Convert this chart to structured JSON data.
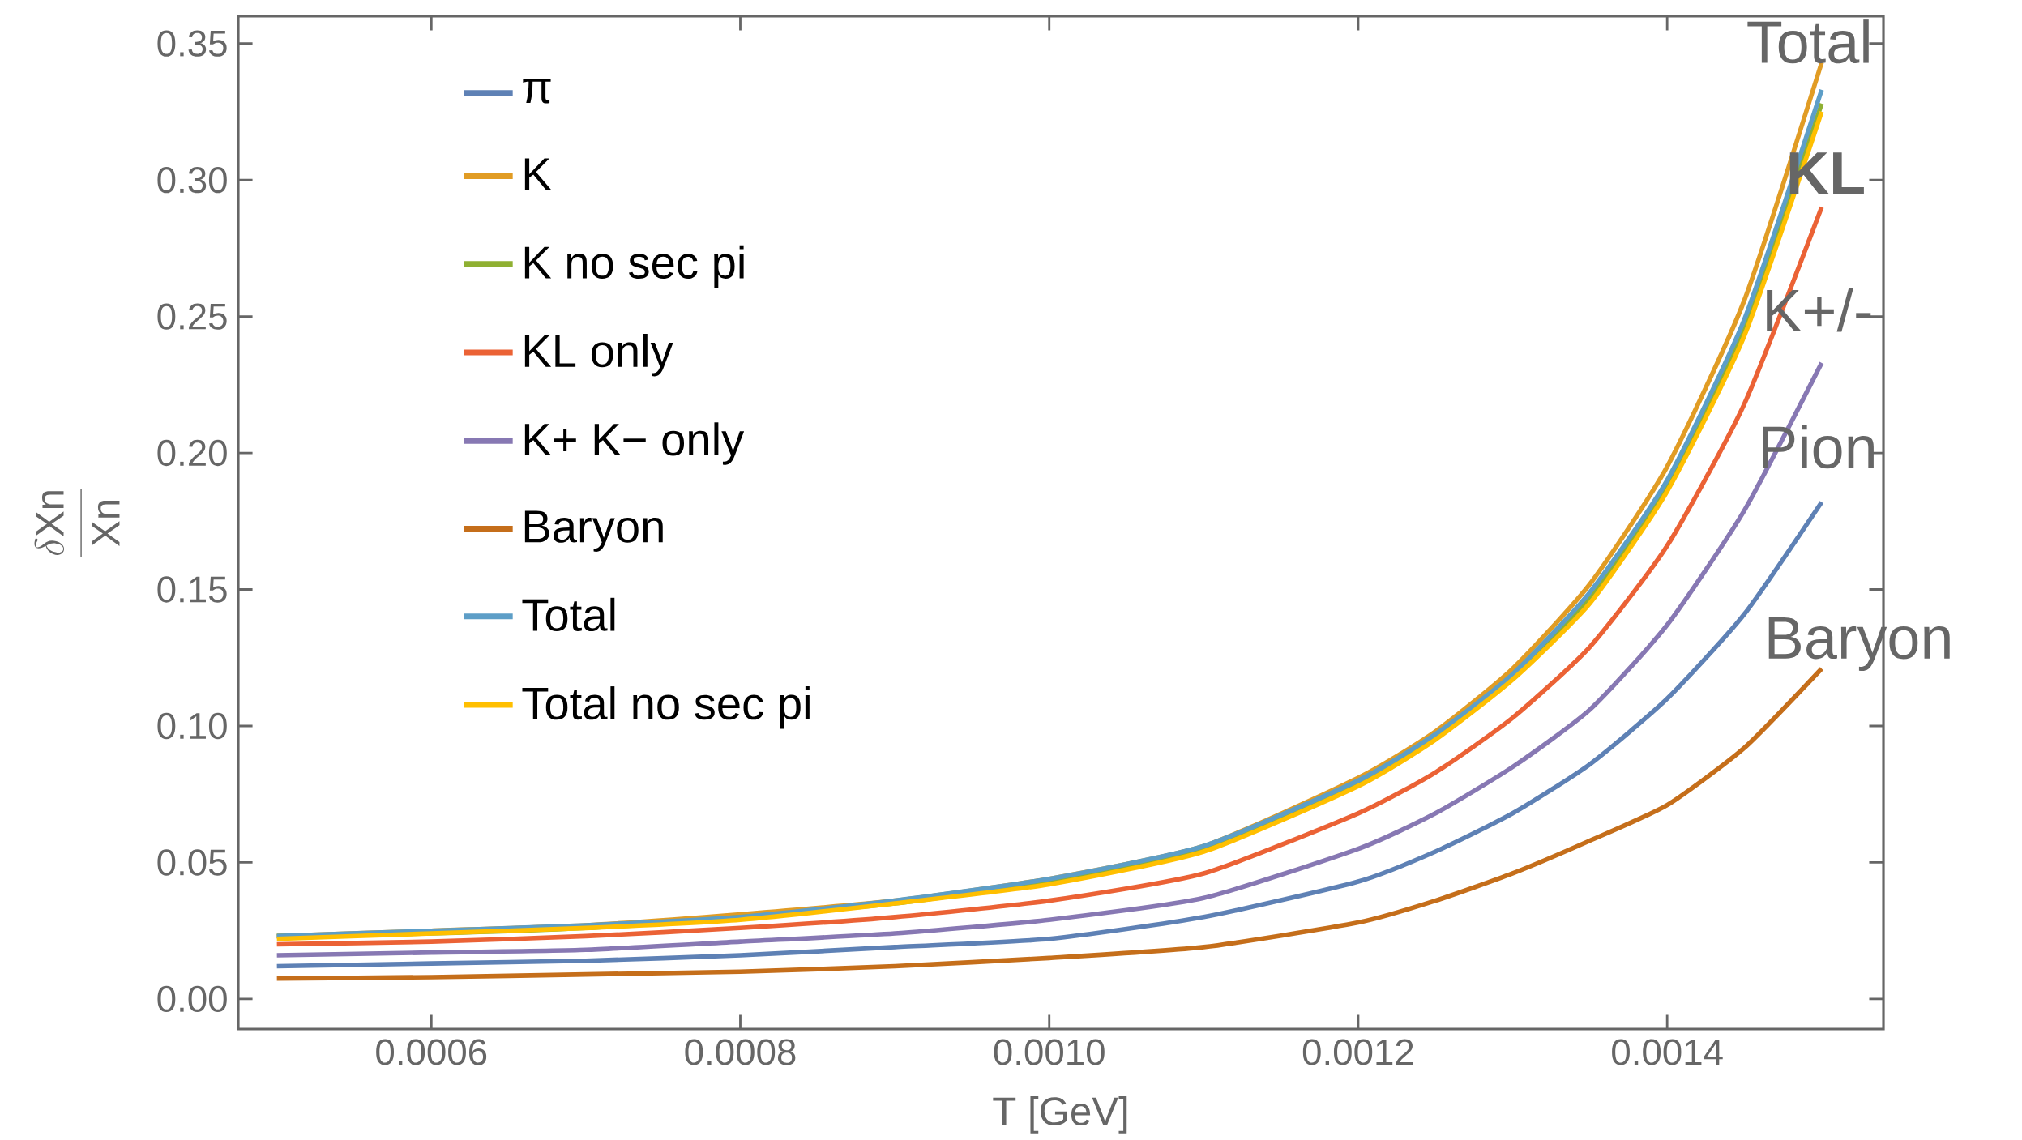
{
  "chart_data": {
    "type": "line",
    "xlabel": "T [GeV]",
    "ylabel": "\\frac{\\delta \\mathrm{Xn}}{\\mathrm{Xn}}",
    "x": [
      0.0005,
      0.0006,
      0.0007,
      0.0008,
      0.0009,
      0.001,
      0.0011,
      0.0012,
      0.00125,
      0.0013,
      0.00135,
      0.0014,
      0.00145,
      0.0015
    ],
    "series": [
      {
        "name": "π",
        "color": "#5e81b5",
        "values": [
          0.012,
          0.013,
          0.014,
          0.016,
          0.019,
          0.022,
          0.03,
          0.043,
          0.054,
          0.068,
          0.086,
          0.11,
          0.141,
          0.182
        ]
      },
      {
        "name": "K",
        "color": "#e19c24",
        "values": [
          0.023,
          0.025,
          0.027,
          0.031,
          0.036,
          0.044,
          0.056,
          0.081,
          0.098,
          0.121,
          0.152,
          0.195,
          0.256,
          0.343
        ]
      },
      {
        "name": "K no sec pi",
        "color": "#8fb032",
        "values": [
          0.023,
          0.024,
          0.026,
          0.03,
          0.035,
          0.043,
          0.055,
          0.079,
          0.096,
          0.118,
          0.147,
          0.188,
          0.246,
          0.328
        ]
      },
      {
        "name": "KL only",
        "color": "#eb6235",
        "values": [
          0.02,
          0.021,
          0.023,
          0.026,
          0.03,
          0.036,
          0.046,
          0.068,
          0.083,
          0.103,
          0.129,
          0.166,
          0.218,
          0.29
        ]
      },
      {
        "name": "K+ K− only",
        "color": "#8778b3",
        "values": [
          0.016,
          0.017,
          0.018,
          0.021,
          0.024,
          0.029,
          0.037,
          0.055,
          0.068,
          0.085,
          0.106,
          0.137,
          0.179,
          0.233
        ]
      },
      {
        "name": "Baryon",
        "color": "#c56e1a",
        "values": [
          0.0075,
          0.008,
          0.009,
          0.01,
          0.012,
          0.015,
          0.019,
          0.028,
          0.036,
          0.046,
          0.058,
          0.071,
          0.092,
          0.121
        ]
      },
      {
        "name": "Total",
        "color": "#5d9ec7",
        "values": [
          0.023,
          0.025,
          0.027,
          0.03,
          0.036,
          0.044,
          0.056,
          0.08,
          0.097,
          0.119,
          0.149,
          0.19,
          0.249,
          0.333
        ]
      },
      {
        "name": "Total no sec pi",
        "color": "#ffbf00",
        "values": [
          0.022,
          0.024,
          0.026,
          0.029,
          0.035,
          0.042,
          0.054,
          0.078,
          0.095,
          0.117,
          0.145,
          0.186,
          0.243,
          0.325
        ]
      }
    ],
    "xlim": [
      0.000475,
      0.00154
    ],
    "ylim": [
      -0.011,
      0.36
    ],
    "xticks": [
      0.0006,
      0.0008,
      {
        "value": 0.001,
        "label": "0.0010"
      },
      0.0012,
      0.0014
    ],
    "yticks": [
      {
        "value": 0,
        "label": "0.00"
      },
      0.05,
      {
        "value": 0.1,
        "label": "0.10"
      },
      0.15,
      {
        "value": 0.2,
        "label": "0.20"
      },
      0.25,
      {
        "value": 0.3,
        "label": "0.30"
      },
      0.35
    ],
    "annotations": [
      "Total",
      "**KL**",
      "K+/-",
      "Pion",
      "Baryon"
    ],
    "legend": "top left",
    "marker": "none",
    "line_style": "solid"
  }
}
